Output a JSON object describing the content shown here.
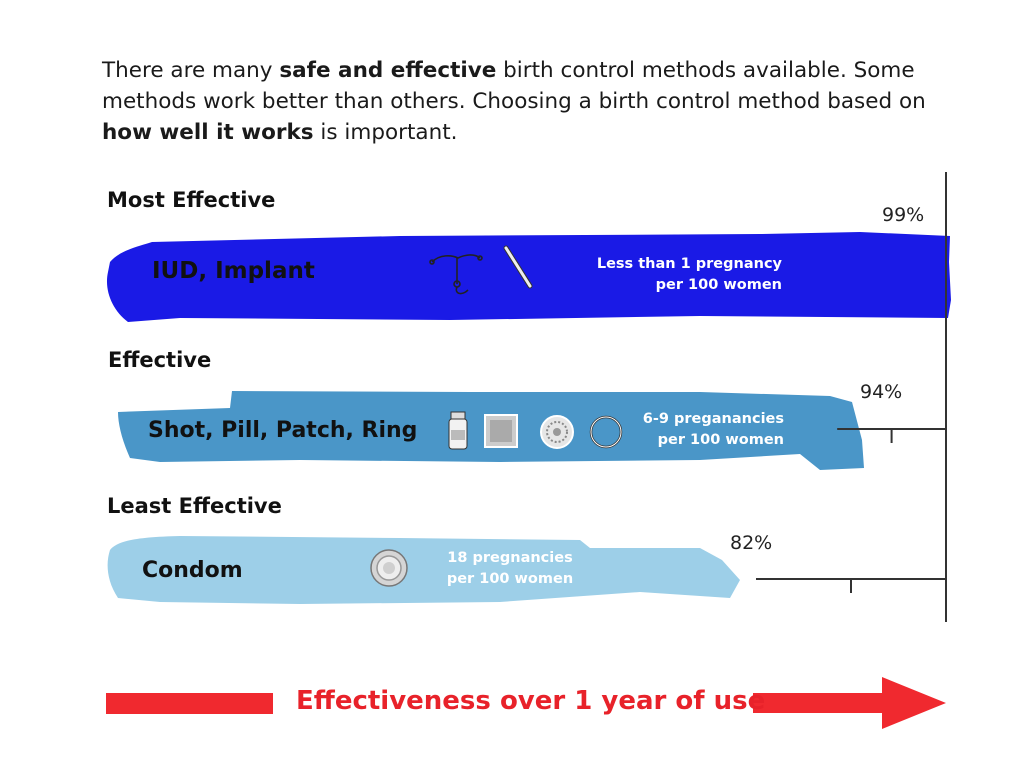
{
  "intro": {
    "t1": "There are many ",
    "b1": "safe and effective",
    "t2": " birth control methods available. Some methods work better than others. Choosing a birth control method based on ",
    "b2": "how well it works",
    "t3": " is important."
  },
  "tiers": [
    {
      "heading": "Most Effective",
      "methods": "IUD, Implant",
      "rate_line1": "Less than 1 pregnancy",
      "rate_line2": "per 100 women",
      "effectiveness": "99%",
      "color": "#1a1ae6",
      "icons": [
        "iud-icon",
        "implant-icon"
      ]
    },
    {
      "heading": "Effective",
      "methods": "Shot, Pill, Patch, Ring",
      "rate_line1": "6-9 preganancies",
      "rate_line2": "per 100 women",
      "effectiveness": "94%",
      "color": "#4a96c8",
      "icons": [
        "shot-vial-icon",
        "patch-icon",
        "pill-pack-icon",
        "ring-icon"
      ]
    },
    {
      "heading": "Least Effective",
      "methods": "Condom",
      "rate_line1": "18 pregnancies",
      "rate_line2": "per 100 women",
      "effectiveness": "82%",
      "color": "#9dcfe8",
      "icons": [
        "condom-icon"
      ]
    }
  ],
  "chart_data": {
    "type": "bar",
    "categories": [
      "IUD, Implant",
      "Shot, Pill, Patch, Ring",
      "Condom"
    ],
    "series": [
      {
        "values": [
          99,
          94,
          82
        ]
      }
    ],
    "tick_labels": [
      "99%",
      "94%",
      "82%"
    ],
    "title": "",
    "xlabel": "Effectiveness over 1 year of use",
    "ylabel": "",
    "orientation": "horizontal"
  },
  "footer": {
    "label": "Effectiveness over 1 year of use",
    "arrow_color": "#f0292f"
  }
}
